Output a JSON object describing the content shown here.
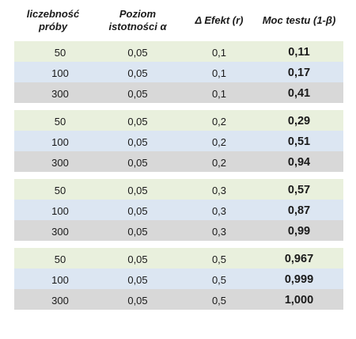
{
  "columns": [
    "liczebność\npróby",
    "Poziom\nistotności α",
    "Δ Efekt (r)",
    "Moc testu (1-β)"
  ],
  "groups": [
    {
      "rows": [
        [
          "50",
          "0,05",
          "0,1",
          "0,11"
        ],
        [
          "100",
          "0,05",
          "0,1",
          "0,17"
        ],
        [
          "300",
          "0,05",
          "0,1",
          "0,41"
        ]
      ]
    },
    {
      "rows": [
        [
          "50",
          "0,05",
          "0,2",
          "0,29"
        ],
        [
          "100",
          "0,05",
          "0,2",
          "0,51"
        ],
        [
          "300",
          "0,05",
          "0,2",
          "0,94"
        ]
      ]
    },
    {
      "rows": [
        [
          "50",
          "0,05",
          "0,3",
          "0,57"
        ],
        [
          "100",
          "0,05",
          "0,3",
          "0,87"
        ],
        [
          "300",
          "0,05",
          "0,3",
          "0,99"
        ]
      ]
    },
    {
      "rows": [
        [
          "50",
          "0,05",
          "0,5",
          "0,967"
        ],
        [
          "100",
          "0,05",
          "0,5",
          "0,999"
        ],
        [
          "300",
          "0,05",
          "0,5",
          "1,000"
        ]
      ]
    }
  ],
  "colors": {
    "row_green": "#e9f0dd",
    "row_blue": "#dce6f2",
    "row_gray": "#d8d8d8"
  }
}
